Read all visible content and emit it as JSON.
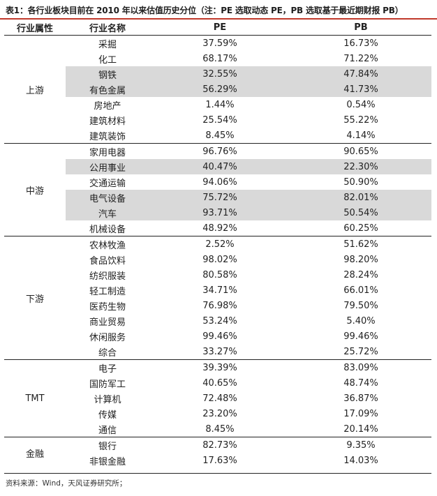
{
  "title": "表1：各行业板块目前在 2010 年以来估值历史分位（注：PE 选取动态 PE，PB 选取基于最近期财报 PB）",
  "headers": {
    "group": "行业属性",
    "industry": "行业名称",
    "pe": "PE",
    "pb": "PB"
  },
  "groups": [
    {
      "name": "上游",
      "rows": [
        {
          "industry": "采掘",
          "pe": "37.59%",
          "pb": "16.73%",
          "shaded": false
        },
        {
          "industry": "化工",
          "pe": "68.17%",
          "pb": "71.22%",
          "shaded": false
        },
        {
          "industry": "钢铁",
          "pe": "32.55%",
          "pb": "47.84%",
          "shaded": true
        },
        {
          "industry": "有色金属",
          "pe": "56.29%",
          "pb": "41.73%",
          "shaded": true
        },
        {
          "industry": "房地产",
          "pe": "1.44%",
          "pb": "0.54%",
          "shaded": false
        },
        {
          "industry": "建筑材料",
          "pe": "25.54%",
          "pb": "55.22%",
          "shaded": false
        },
        {
          "industry": "建筑装饰",
          "pe": "8.45%",
          "pb": "4.14%",
          "shaded": false
        }
      ]
    },
    {
      "name": "中游",
      "rows": [
        {
          "industry": "家用电器",
          "pe": "96.76%",
          "pb": "90.65%",
          "shaded": false
        },
        {
          "industry": "公用事业",
          "pe": "40.47%",
          "pb": "22.30%",
          "shaded": true
        },
        {
          "industry": "交通运输",
          "pe": "94.06%",
          "pb": "50.90%",
          "shaded": false
        },
        {
          "industry": "电气设备",
          "pe": "75.72%",
          "pb": "82.01%",
          "shaded": true
        },
        {
          "industry": "汽车",
          "pe": "93.71%",
          "pb": "50.54%",
          "shaded": true
        },
        {
          "industry": "机械设备",
          "pe": "48.92%",
          "pb": "60.25%",
          "shaded": false
        }
      ]
    },
    {
      "name": "下游",
      "rows": [
        {
          "industry": "农林牧渔",
          "pe": "2.52%",
          "pb": "51.62%",
          "shaded": false
        },
        {
          "industry": "食品饮料",
          "pe": "98.02%",
          "pb": "98.20%",
          "shaded": false
        },
        {
          "industry": "纺织服装",
          "pe": "80.58%",
          "pb": "28.24%",
          "shaded": false
        },
        {
          "industry": "轻工制造",
          "pe": "34.71%",
          "pb": "66.01%",
          "shaded": false
        },
        {
          "industry": "医药生物",
          "pe": "76.98%",
          "pb": "79.50%",
          "shaded": false
        },
        {
          "industry": "商业贸易",
          "pe": "53.24%",
          "pb": "5.40%",
          "shaded": false
        },
        {
          "industry": "休闲服务",
          "pe": "99.46%",
          "pb": "99.46%",
          "shaded": false
        },
        {
          "industry": "综合",
          "pe": "33.27%",
          "pb": "25.72%",
          "shaded": false
        }
      ]
    },
    {
      "name": "TMT",
      "rows": [
        {
          "industry": "电子",
          "pe": "39.39%",
          "pb": "83.09%",
          "shaded": false
        },
        {
          "industry": "国防军工",
          "pe": "40.65%",
          "pb": "48.74%",
          "shaded": false
        },
        {
          "industry": "计算机",
          "pe": "72.48%",
          "pb": "36.87%",
          "shaded": false
        },
        {
          "industry": "传媒",
          "pe": "23.20%",
          "pb": "17.09%",
          "shaded": false
        },
        {
          "industry": "通信",
          "pe": "8.45%",
          "pb": "20.14%",
          "shaded": false
        }
      ]
    },
    {
      "name": "金融",
      "rows": [
        {
          "industry": "银行",
          "pe": "82.73%",
          "pb": "9.35%",
          "shaded": false
        },
        {
          "industry": "非银金融",
          "pe": "17.63%",
          "pb": "14.03%",
          "shaded": false
        }
      ]
    }
  ],
  "source": "资料来源：Wind，天风证券研究所；",
  "colors": {
    "title_rule": "#c0392b",
    "shade": "#d9d9d9",
    "rule": "#222222"
  }
}
